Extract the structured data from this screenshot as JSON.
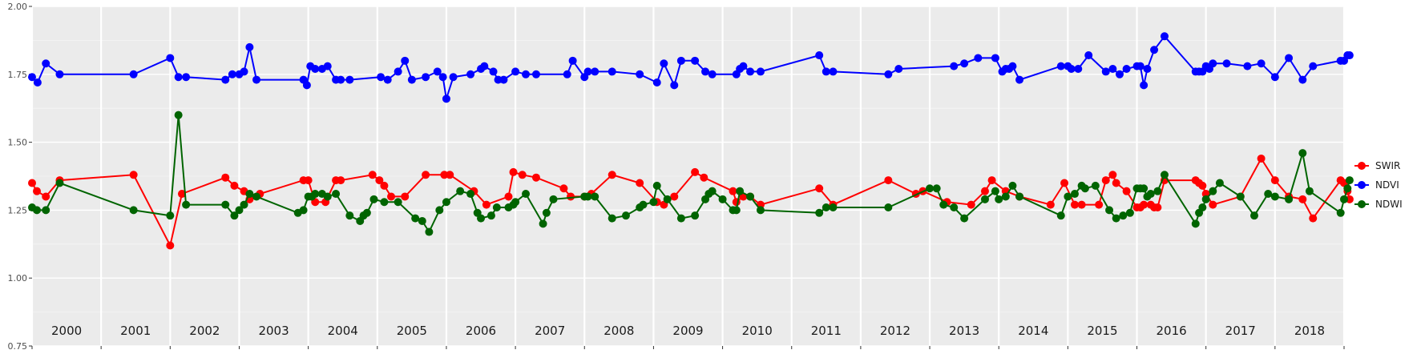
{
  "chart_data": {
    "type": "line",
    "title": "",
    "xlabel": "",
    "ylabel": "",
    "xlim": [
      2000.0,
      2019.0
    ],
    "ylim": [
      0.75,
      2.0
    ],
    "yticks": [
      0.75,
      1.0,
      1.25,
      1.5,
      1.75,
      2.0
    ],
    "ytick_labels": [
      "0.75",
      "1.00",
      "1.25",
      "1.50",
      "1.75",
      "2.00"
    ],
    "year_labels": [
      "2000",
      "2001",
      "2002",
      "2003",
      "2004",
      "2005",
      "2006",
      "2007",
      "2008",
      "2009",
      "2010",
      "2011",
      "2012",
      "2013",
      "2014",
      "2015",
      "2016",
      "2017",
      "2018"
    ],
    "grid": true,
    "legend_position": "right",
    "series": [
      {
        "name": "SWIR",
        "color": "#ff0000",
        "x": [
          2000.0,
          2000.07,
          2000.2,
          2000.4,
          2001.47,
          2002.0,
          2002.17,
          2002.8,
          2002.93,
          2003.07,
          2003.15,
          2003.3,
          2003.93,
          2004.0,
          2004.1,
          2004.25,
          2004.4,
          2004.47,
          2004.93,
          2005.03,
          2005.1,
          2005.2,
          2005.4,
          2005.7,
          2005.97,
          2006.05,
          2006.4,
          2006.58,
          2006.9,
          2006.97,
          2007.1,
          2007.3,
          2007.7,
          2007.8,
          2008.0,
          2008.1,
          2008.4,
          2008.8,
          2009.05,
          2009.15,
          2009.3,
          2009.6,
          2009.73,
          2010.15,
          2010.2,
          2010.3,
          2010.4,
          2010.55,
          2011.4,
          2011.6,
          2012.4,
          2012.8,
          2012.9,
          2013.25,
          2013.6,
          2013.8,
          2013.9,
          2014.1,
          2014.3,
          2014.75,
          2014.95,
          2015.1,
          2015.2,
          2015.45,
          2015.55,
          2015.65,
          2015.7,
          2015.85,
          2016.0,
          2016.05,
          2016.1,
          2016.2,
          2016.25,
          2016.3,
          2016.4,
          2016.85,
          2016.9,
          2016.95,
          2017.0,
          2017.1,
          2017.5,
          2017.8,
          2018.0,
          2018.2,
          2018.4,
          2018.55,
          2018.95,
          2019.0,
          2019.05,
          2019.08
        ],
        "values": [
          1.35,
          1.32,
          1.3,
          1.36,
          1.38,
          1.12,
          1.31,
          1.37,
          1.34,
          1.32,
          1.29,
          1.31,
          1.36,
          1.36,
          1.28,
          1.28,
          1.36,
          1.36,
          1.38,
          1.36,
          1.34,
          1.3,
          1.3,
          1.38,
          1.38,
          1.38,
          1.32,
          1.27,
          1.3,
          1.39,
          1.38,
          1.37,
          1.33,
          1.3,
          1.3,
          1.31,
          1.38,
          1.35,
          1.28,
          1.27,
          1.3,
          1.39,
          1.37,
          1.32,
          1.28,
          1.3,
          1.3,
          1.27,
          1.33,
          1.27,
          1.36,
          1.31,
          1.32,
          1.28,
          1.27,
          1.32,
          1.36,
          1.32,
          1.3,
          1.27,
          1.35,
          1.27,
          1.27,
          1.27,
          1.36,
          1.38,
          1.35,
          1.32,
          1.26,
          1.26,
          1.27,
          1.27,
          1.26,
          1.26,
          1.36,
          1.36,
          1.35,
          1.34,
          1.31,
          1.27,
          1.3,
          1.44,
          1.36,
          1.3,
          1.29,
          1.22,
          1.36,
          1.35,
          1.32,
          1.29
        ]
      },
      {
        "name": "NDVI",
        "color": "#0000ff",
        "x": [
          2000.0,
          2000.08,
          2000.2,
          2000.4,
          2001.47,
          2002.0,
          2002.12,
          2002.23,
          2002.8,
          2002.9,
          2003.0,
          2003.07,
          2003.15,
          2003.25,
          2003.93,
          2003.98,
          2004.03,
          2004.1,
          2004.2,
          2004.28,
          2004.4,
          2004.47,
          2004.6,
          2005.05,
          2005.15,
          2005.3,
          2005.4,
          2005.5,
          2005.7,
          2005.87,
          2005.95,
          2006.0,
          2006.1,
          2006.35,
          2006.5,
          2006.55,
          2006.68,
          2006.75,
          2006.83,
          2007.0,
          2007.15,
          2007.3,
          2007.75,
          2007.83,
          2008.0,
          2008.05,
          2008.15,
          2008.4,
          2008.8,
          2009.05,
          2009.15,
          2009.3,
          2009.4,
          2009.6,
          2009.75,
          2009.85,
          2010.2,
          2010.25,
          2010.3,
          2010.4,
          2010.55,
          2011.4,
          2011.5,
          2011.6,
          2012.4,
          2012.55,
          2013.35,
          2013.5,
          2013.7,
          2013.95,
          2014.05,
          2014.1,
          2014.15,
          2014.2,
          2014.3,
          2014.9,
          2015.0,
          2015.05,
          2015.15,
          2015.3,
          2015.55,
          2015.65,
          2015.75,
          2015.85,
          2016.0,
          2016.05,
          2016.1,
          2016.15,
          2016.25,
          2016.4,
          2016.85,
          2016.9,
          2016.95,
          2017.0,
          2017.05,
          2017.1,
          2017.3,
          2017.6,
          2017.8,
          2018.0,
          2018.2,
          2018.4,
          2018.55,
          2018.95,
          2019.0,
          2019.05,
          2019.08
        ],
        "values": [
          1.74,
          1.72,
          1.79,
          1.75,
          1.75,
          1.81,
          1.74,
          1.74,
          1.73,
          1.75,
          1.75,
          1.76,
          1.85,
          1.73,
          1.73,
          1.71,
          1.78,
          1.77,
          1.77,
          1.78,
          1.73,
          1.73,
          1.73,
          1.74,
          1.73,
          1.76,
          1.8,
          1.73,
          1.74,
          1.76,
          1.74,
          1.66,
          1.74,
          1.75,
          1.77,
          1.78,
          1.76,
          1.73,
          1.73,
          1.76,
          1.75,
          1.75,
          1.75,
          1.8,
          1.74,
          1.76,
          1.76,
          1.76,
          1.75,
          1.72,
          1.79,
          1.71,
          1.8,
          1.8,
          1.76,
          1.75,
          1.75,
          1.77,
          1.78,
          1.76,
          1.76,
          1.82,
          1.76,
          1.76,
          1.75,
          1.77,
          1.78,
          1.79,
          1.81,
          1.81,
          1.76,
          1.77,
          1.77,
          1.78,
          1.73,
          1.78,
          1.78,
          1.77,
          1.77,
          1.82,
          1.76,
          1.77,
          1.75,
          1.77,
          1.78,
          1.78,
          1.71,
          1.77,
          1.84,
          1.89,
          1.76,
          1.76,
          1.76,
          1.78,
          1.77,
          1.79,
          1.79,
          1.78,
          1.79,
          1.74,
          1.81,
          1.73,
          1.78,
          1.8,
          1.8,
          1.82,
          1.82
        ]
      },
      {
        "name": "NDWI",
        "color": "#006400",
        "x": [
          2000.0,
          2000.07,
          2000.2,
          2000.4,
          2001.47,
          2002.0,
          2002.12,
          2002.23,
          2002.8,
          2002.93,
          2003.0,
          2003.07,
          2003.15,
          2003.25,
          2003.85,
          2003.93,
          2004.0,
          2004.05,
          2004.1,
          2004.2,
          2004.28,
          2004.4,
          2004.6,
          2004.75,
          2004.8,
          2004.85,
          2004.95,
          2005.1,
          2005.3,
          2005.55,
          2005.65,
          2005.75,
          2005.9,
          2006.0,
          2006.2,
          2006.35,
          2006.45,
          2006.5,
          2006.65,
          2006.73,
          2006.9,
          2006.97,
          2007.0,
          2007.15,
          2007.4,
          2007.45,
          2007.55,
          2008.0,
          2008.05,
          2008.15,
          2008.4,
          2008.6,
          2008.8,
          2008.85,
          2009.0,
          2009.05,
          2009.2,
          2009.4,
          2009.6,
          2009.75,
          2009.8,
          2009.85,
          2010.0,
          2010.15,
          2010.2,
          2010.25,
          2010.4,
          2010.55,
          2011.4,
          2011.5,
          2011.6,
          2012.4,
          2013.0,
          2013.1,
          2013.2,
          2013.35,
          2013.5,
          2013.8,
          2013.95,
          2014.0,
          2014.1,
          2014.2,
          2014.3,
          2014.9,
          2015.0,
          2015.1,
          2015.2,
          2015.25,
          2015.4,
          2015.6,
          2015.7,
          2015.8,
          2015.9,
          2016.0,
          2016.05,
          2016.1,
          2016.15,
          2016.2,
          2016.3,
          2016.4,
          2016.85,
          2016.9,
          2016.95,
          2017.0,
          2017.1,
          2017.2,
          2017.5,
          2017.7,
          2017.9,
          2018.0,
          2018.2,
          2018.4,
          2018.5,
          2018.95,
          2019.0,
          2019.05,
          2019.08
        ],
        "values": [
          1.26,
          1.25,
          1.25,
          1.35,
          1.25,
          1.23,
          1.6,
          1.27,
          1.27,
          1.23,
          1.25,
          1.27,
          1.31,
          1.3,
          1.24,
          1.25,
          1.3,
          1.3,
          1.31,
          1.31,
          1.3,
          1.31,
          1.23,
          1.21,
          1.23,
          1.24,
          1.29,
          1.28,
          1.28,
          1.22,
          1.21,
          1.17,
          1.25,
          1.28,
          1.32,
          1.31,
          1.24,
          1.22,
          1.23,
          1.26,
          1.26,
          1.27,
          1.28,
          1.31,
          1.2,
          1.24,
          1.29,
          1.3,
          1.3,
          1.3,
          1.22,
          1.23,
          1.26,
          1.27,
          1.28,
          1.34,
          1.29,
          1.22,
          1.23,
          1.29,
          1.31,
          1.32,
          1.29,
          1.25,
          1.25,
          1.32,
          1.3,
          1.25,
          1.24,
          1.26,
          1.26,
          1.26,
          1.33,
          1.33,
          1.27,
          1.26,
          1.22,
          1.29,
          1.32,
          1.29,
          1.3,
          1.34,
          1.3,
          1.23,
          1.3,
          1.31,
          1.34,
          1.33,
          1.34,
          1.25,
          1.22,
          1.23,
          1.24,
          1.33,
          1.33,
          1.33,
          1.3,
          1.31,
          1.32,
          1.38,
          1.2,
          1.24,
          1.26,
          1.29,
          1.32,
          1.35,
          1.3,
          1.23,
          1.31,
          1.3,
          1.29,
          1.46,
          1.32,
          1.24,
          1.29,
          1.33,
          1.36
        ]
      }
    ]
  }
}
